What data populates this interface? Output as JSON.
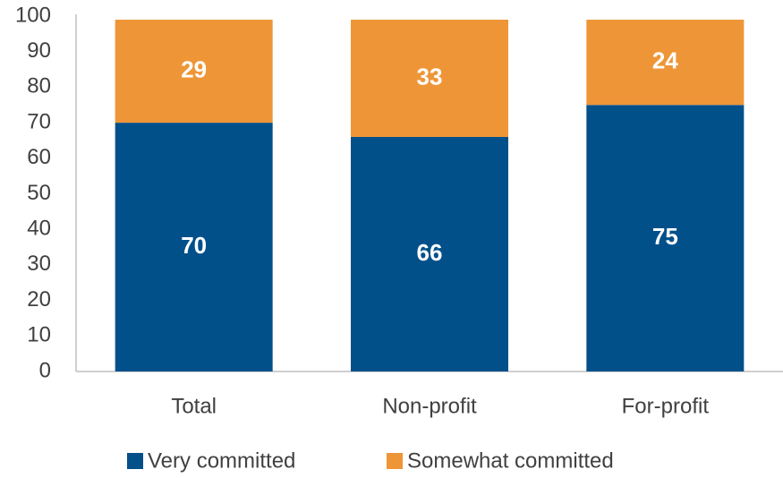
{
  "chart_data": {
    "type": "stacked_bar",
    "categories": [
      "Total",
      "Non-profit",
      "For-profit"
    ],
    "series": [
      {
        "name": "Very committed",
        "color": "#02508a",
        "values": [
          70,
          66,
          75
        ]
      },
      {
        "name": "Somewhat committed",
        "color": "#ee9637",
        "values": [
          29,
          33,
          24
        ]
      }
    ],
    "ylim": [
      0,
      100
    ],
    "yticks": [
      0,
      10,
      20,
      30,
      40,
      50,
      60,
      70,
      80,
      90,
      100
    ],
    "grid": false,
    "legend": "bottom"
  }
}
